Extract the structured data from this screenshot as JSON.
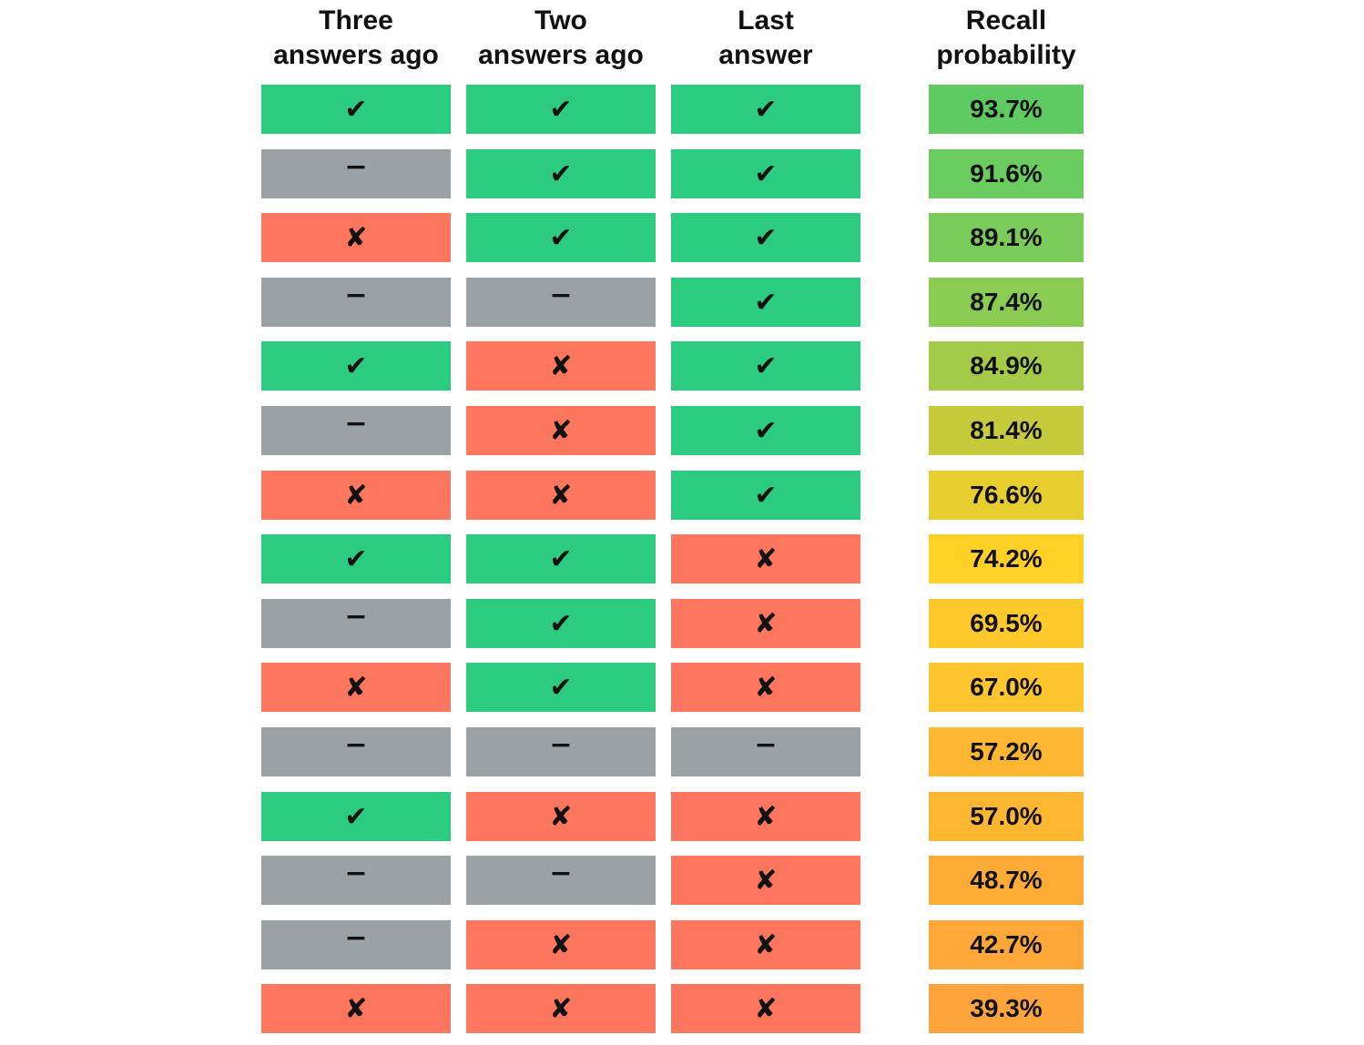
{
  "headers": {
    "three": [
      "Three",
      "answers ago"
    ],
    "two": [
      "Two",
      "answers ago"
    ],
    "last": [
      "Last",
      "answer"
    ],
    "recall": [
      "Recall",
      "probability"
    ]
  },
  "symbols": {
    "correct": "✔",
    "incorrect": "✘",
    "none": "−"
  },
  "colors": {
    "correct": "#2bcc80",
    "incorrect": "#ff765e",
    "none": "#99a3a6"
  },
  "rows": [
    {
      "three": "correct",
      "two": "correct",
      "last": "correct",
      "recall": "93.7%",
      "recall_color": "#5ecb62"
    },
    {
      "three": "none",
      "two": "correct",
      "last": "correct",
      "recall": "91.6%",
      "recall_color": "#6acb5f"
    },
    {
      "three": "incorrect",
      "two": "correct",
      "last": "correct",
      "recall": "89.1%",
      "recall_color": "#7acb5a"
    },
    {
      "three": "none",
      "two": "none",
      "last": "correct",
      "recall": "87.4%",
      "recall_color": "#8acb52"
    },
    {
      "three": "correct",
      "two": "incorrect",
      "last": "correct",
      "recall": "84.9%",
      "recall_color": "#a3cb47"
    },
    {
      "three": "none",
      "two": "incorrect",
      "last": "correct",
      "recall": "81.4%",
      "recall_color": "#c6cb3b"
    },
    {
      "three": "incorrect",
      "two": "incorrect",
      "last": "correct",
      "recall": "76.6%",
      "recall_color": "#e8cd2e"
    },
    {
      "three": "correct",
      "two": "correct",
      "last": "incorrect",
      "recall": "74.2%",
      "recall_color": "#ffd026"
    },
    {
      "three": "none",
      "two": "correct",
      "last": "incorrect",
      "recall": "69.5%",
      "recall_color": "#ffc82b"
    },
    {
      "three": "incorrect",
      "two": "correct",
      "last": "incorrect",
      "recall": "67.0%",
      "recall_color": "#ffc52d"
    },
    {
      "three": "none",
      "two": "none",
      "last": "none",
      "recall": "57.2%",
      "recall_color": "#ffb731"
    },
    {
      "three": "correct",
      "two": "incorrect",
      "last": "incorrect",
      "recall": "57.0%",
      "recall_color": "#ffb731"
    },
    {
      "three": "none",
      "two": "none",
      "last": "incorrect",
      "recall": "48.7%",
      "recall_color": "#ffac36"
    },
    {
      "three": "none",
      "two": "incorrect",
      "last": "incorrect",
      "recall": "42.7%",
      "recall_color": "#ffa738"
    },
    {
      "three": "incorrect",
      "two": "incorrect",
      "last": "incorrect",
      "recall": "39.3%",
      "recall_color": "#ffa43a"
    }
  ]
}
